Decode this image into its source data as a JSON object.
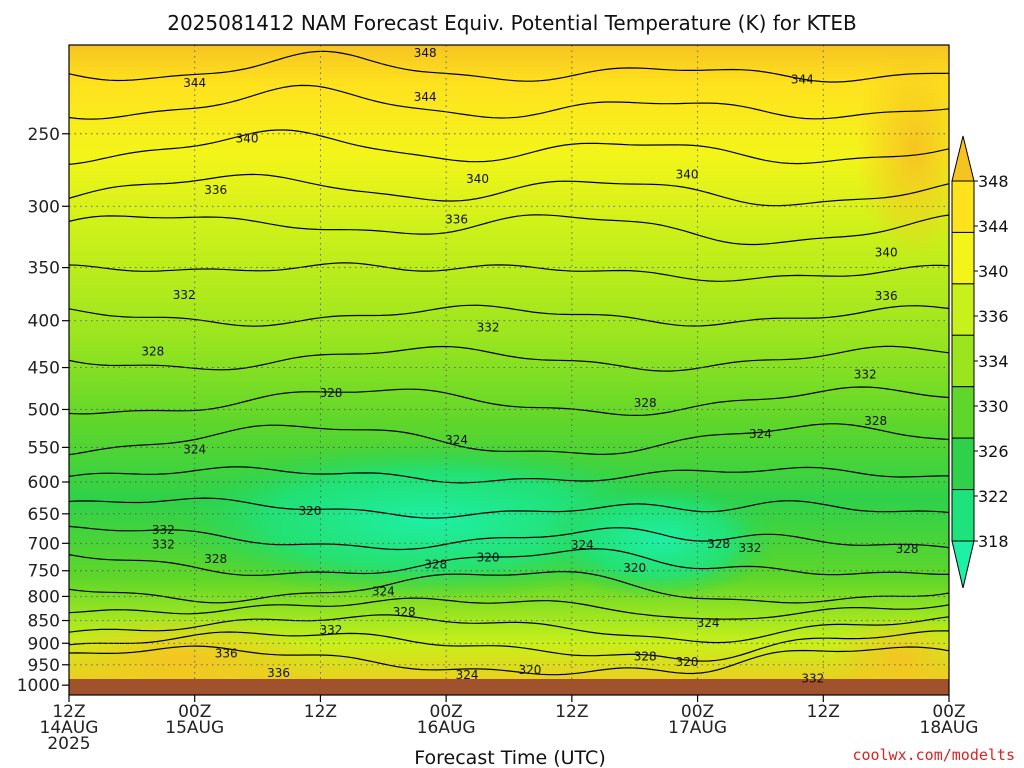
{
  "chart_data": {
    "type": "heatmap",
    "title": "2025081412 NAM Forecast Equiv. Potential Temperature (K) for KTEB",
    "xlabel": "Forecast Time (UTC)",
    "ylabel": "",
    "y_scale": "log-pressure",
    "y_ticks": [
      250,
      300,
      350,
      400,
      450,
      500,
      550,
      600,
      650,
      700,
      750,
      800,
      850,
      900,
      950,
      1000
    ],
    "ylim": [
      1025,
      200
    ],
    "x_ticks": [
      {
        "hours": 0,
        "lines": [
          "12Z",
          "14AUG",
          "2025"
        ]
      },
      {
        "hours": 12,
        "lines": [
          "00Z",
          "15AUG"
        ]
      },
      {
        "hours": 24,
        "lines": [
          "12Z"
        ]
      },
      {
        "hours": 36,
        "lines": [
          "00Z",
          "16AUG"
        ]
      },
      {
        "hours": 48,
        "lines": [
          "12Z"
        ]
      },
      {
        "hours": 60,
        "lines": [
          "00Z",
          "17AUG"
        ]
      },
      {
        "hours": 72,
        "lines": [
          "12Z"
        ]
      },
      {
        "hours": 84,
        "lines": [
          "00Z",
          "18AUG"
        ]
      }
    ],
    "xlim": [
      0,
      84
    ],
    "grid": true,
    "colorbar": {
      "labels": [
        "348",
        "344",
        "340",
        "336",
        "334",
        "330",
        "326",
        "322",
        "318"
      ],
      "colors": [
        "#f6c421",
        "#ffe21e",
        "#f3f51a",
        "#c8f01a",
        "#9be51f",
        "#5fd62a",
        "#2fd14a",
        "#1ee37c",
        "#1ef0a6"
      ]
    },
    "contour_labels": [
      {
        "x": 34,
        "p": 204,
        "text": "348"
      },
      {
        "x": 12,
        "p": 220,
        "text": "344"
      },
      {
        "x": 34,
        "p": 228,
        "text": "344"
      },
      {
        "x": 70,
        "p": 218,
        "text": "344"
      },
      {
        "x": 17,
        "p": 253,
        "text": "340"
      },
      {
        "x": 39,
        "p": 280,
        "text": "340"
      },
      {
        "x": 59,
        "p": 277,
        "text": "340"
      },
      {
        "x": 14,
        "p": 288,
        "text": "336"
      },
      {
        "x": 37,
        "p": 310,
        "text": "336"
      },
      {
        "x": 78,
        "p": 337,
        "text": "340"
      },
      {
        "x": 11,
        "p": 375,
        "text": "332"
      },
      {
        "x": 40,
        "p": 407,
        "text": "332"
      },
      {
        "x": 78,
        "p": 376,
        "text": "336"
      },
      {
        "x": 8,
        "p": 432,
        "text": "328"
      },
      {
        "x": 25,
        "p": 480,
        "text": "328"
      },
      {
        "x": 55,
        "p": 492,
        "text": "328"
      },
      {
        "x": 76,
        "p": 458,
        "text": "332"
      },
      {
        "x": 12,
        "p": 553,
        "text": "324"
      },
      {
        "x": 37,
        "p": 540,
        "text": "324"
      },
      {
        "x": 66,
        "p": 532,
        "text": "324"
      },
      {
        "x": 77,
        "p": 515,
        "text": "328"
      },
      {
        "x": 23,
        "p": 645,
        "text": "320"
      },
      {
        "x": 9,
        "p": 677,
        "text": "332"
      },
      {
        "x": 9,
        "p": 702,
        "text": "332"
      },
      {
        "x": 14,
        "p": 728,
        "text": "328"
      },
      {
        "x": 35,
        "p": 738,
        "text": "328"
      },
      {
        "x": 40,
        "p": 725,
        "text": "320"
      },
      {
        "x": 49,
        "p": 703,
        "text": "324"
      },
      {
        "x": 54,
        "p": 745,
        "text": "320"
      },
      {
        "x": 62,
        "p": 701,
        "text": "328"
      },
      {
        "x": 65,
        "p": 708,
        "text": "332"
      },
      {
        "x": 80,
        "p": 710,
        "text": "328"
      },
      {
        "x": 30,
        "p": 790,
        "text": "324"
      },
      {
        "x": 32,
        "p": 832,
        "text": "328"
      },
      {
        "x": 25,
        "p": 870,
        "text": "332"
      },
      {
        "x": 61,
        "p": 855,
        "text": "324"
      },
      {
        "x": 15,
        "p": 924,
        "text": "336"
      },
      {
        "x": 20,
        "p": 970,
        "text": "336"
      },
      {
        "x": 38,
        "p": 975,
        "text": "324"
      },
      {
        "x": 44,
        "p": 962,
        "text": "320"
      },
      {
        "x": 55,
        "p": 930,
        "text": "328"
      },
      {
        "x": 59,
        "p": 943,
        "text": "320"
      },
      {
        "x": 71,
        "p": 983,
        "text": "332"
      }
    ]
  },
  "credit": "coolwx.com/modelts"
}
